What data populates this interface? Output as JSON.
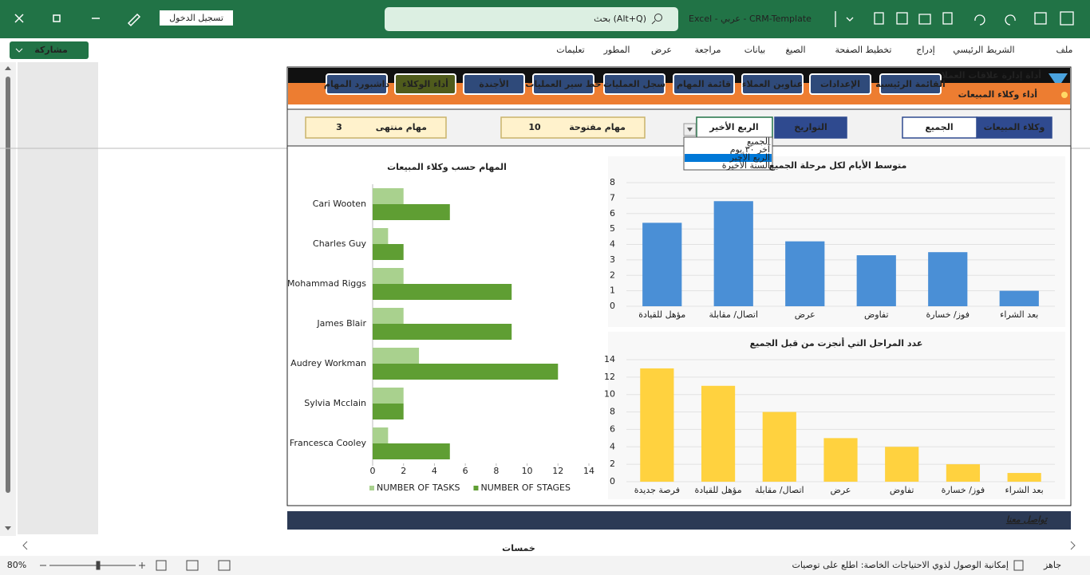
{
  "titlebar": {
    "caption": "Excel  -  عربي  -  CRM-Template",
    "search": "بحث (Alt+Q)",
    "signin": "تسجيل الدخول"
  },
  "share": "مشاركة",
  "ribbon_tabs": [
    "ملف",
    "الشريط الرئيسي",
    "إدراج",
    "تخطيط الصفحة",
    "الصيغ",
    "بيانات",
    "مراجعة",
    "عرض",
    "المطور",
    "تعليمات"
  ],
  "dashboard": {
    "brand": "أداة إدارة علاقات العملاء",
    "title": "أداء وكلاء المبيعات",
    "nav": [
      "القائمة الرئيسية",
      "الإعدادات",
      "عناوين العملاء",
      "قائمة المهام",
      "سجل العمليات",
      "خط سير العمليات",
      "الأجندة",
      "أداء الوكلاء",
      "داشبورد المهام"
    ],
    "filters": {
      "agents": {
        "label": "وكلاء المبيعات",
        "value": "الجميع"
      },
      "dates": {
        "label": "التواريخ",
        "value": "الربع الأخير"
      },
      "options": [
        "الجميع",
        "آخر ٣٠ يوم",
        "الربع الأخير",
        "السنة الأخيرة"
      ]
    },
    "stats": [
      {
        "label": "مهام مفتوحة",
        "value": 10
      },
      {
        "label": "مهام منتهى",
        "value": 3
      }
    ],
    "footer": "تواصل معنا"
  },
  "chart_data": [
    {
      "type": "bar",
      "orientation": "horizontal",
      "title": "المهام حسب وكلاء المبيعات",
      "categories": [
        "Cari Wooten",
        "Charles Guy",
        "Mohammad Riggs",
        "James Blair",
        "Audrey Workman",
        "Sylvia Mcclain",
        "Francesca Cooley"
      ],
      "series": [
        {
          "name": "NUMBER OF TASKS",
          "color": "#a9d18e",
          "values": [
            2,
            1,
            2,
            2,
            3,
            2,
            1
          ]
        },
        {
          "name": "NUMBER OF STAGES",
          "color": "#5f9e33",
          "values": [
            5,
            2,
            9,
            9,
            12,
            2,
            5
          ]
        }
      ],
      "xlim": [
        0,
        14
      ],
      "xticks": [
        0,
        2,
        4,
        6,
        8,
        10,
        12,
        14
      ],
      "grid": false,
      "legend": "bottom"
    },
    {
      "type": "bar",
      "orientation": "vertical",
      "title": "متوسط الأيام لكل مرحلة  الجميع",
      "categories": [
        "مؤهل للقيادة",
        "اتصال/ مقابلة",
        "عرض",
        "تفاوض",
        "فوز/ خسارة",
        "بعد الشراء"
      ],
      "values": [
        5.4,
        6.8,
        4.2,
        3.3,
        3.5,
        1.0
      ],
      "color": "#4a8fd6",
      "ylim": [
        0,
        8
      ],
      "yticks": [
        0,
        1,
        2,
        3,
        4,
        5,
        6,
        7,
        8
      ],
      "grid": true
    },
    {
      "type": "bar",
      "orientation": "vertical",
      "title": "عدد المراحل التي أنجزت من قبل الجميع",
      "categories": [
        "فرصة جديدة",
        "مؤهل للقيادة",
        "اتصال/ مقابلة",
        "عرض",
        "تفاوض",
        "فوز/ خسارة",
        "بعد الشراء"
      ],
      "values": [
        13,
        11,
        8,
        5,
        4,
        2,
        1
      ],
      "color": "#ffd23f",
      "ylim": [
        0,
        14
      ],
      "yticks": [
        0,
        2,
        4,
        6,
        8,
        10,
        12,
        14
      ],
      "grid": true
    }
  ],
  "watermark": "خمسات",
  "status": {
    "ready": "جاهز",
    "accessibility": "إمكانية الوصول لذوي الاحتياجات الخاصة: اطلع على توصيات",
    "zoom": "80%"
  }
}
